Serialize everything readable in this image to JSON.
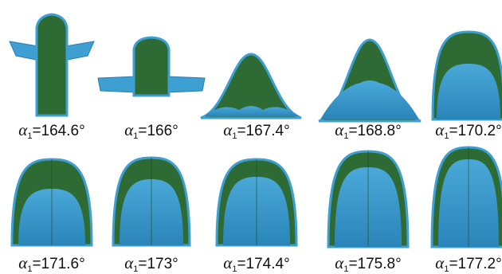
{
  "panels": [
    {
      "symbol": "α",
      "subscript": "1",
      "value": "=164.6°"
    },
    {
      "symbol": "α",
      "subscript": "1",
      "value": "=166°"
    },
    {
      "symbol": "α",
      "subscript": "1",
      "value": "=167.4°"
    },
    {
      "symbol": "α",
      "subscript": "1",
      "value": "=168.8°"
    },
    {
      "symbol": "α",
      "subscript": "1",
      "value": "=170.2°"
    },
    {
      "symbol": "α",
      "subscript": "1",
      "value": "=171.6°"
    },
    {
      "symbol": "α",
      "subscript": "1",
      "value": "=173°"
    },
    {
      "symbol": "α",
      "subscript": "1",
      "value": "=174.4°"
    },
    {
      "symbol": "α",
      "subscript": "1",
      "value": "=175.8°"
    },
    {
      "symbol": "α",
      "subscript": "1",
      "value": "=177.2°"
    }
  ]
}
